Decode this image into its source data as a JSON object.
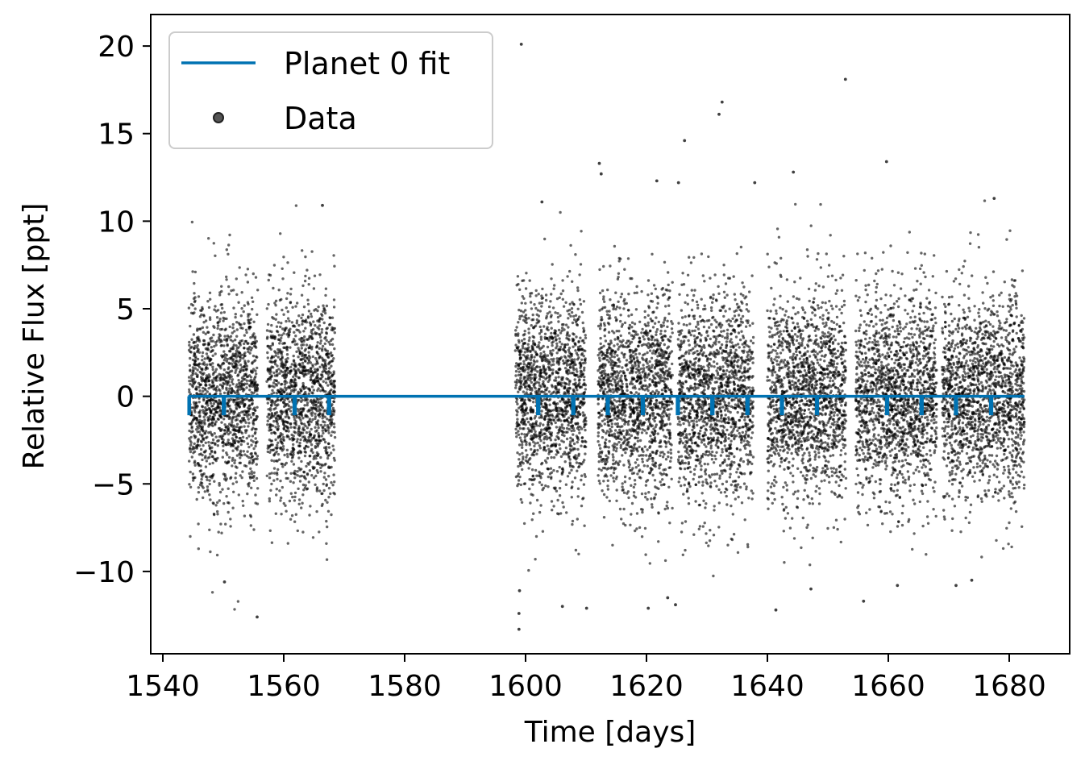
{
  "chart_data": {
    "type": "scatter",
    "xlabel": "Time [days]",
    "ylabel": "Relative Flux [ppt]",
    "xlim": [
      1538,
      1690
    ],
    "ylim": [
      -14.7,
      21.8
    ],
    "xticks": [
      1540,
      1560,
      1580,
      1600,
      1620,
      1640,
      1660,
      1680
    ],
    "yticks": [
      -10,
      -5,
      0,
      5,
      10,
      15,
      20
    ],
    "ytick_labels": [
      "−10",
      "−5",
      "0",
      "5",
      "10",
      "15",
      "20"
    ],
    "grid": false,
    "legend": {
      "placement": "top-left",
      "entries": [
        {
          "label": "Planet 0 fit",
          "marker": "line",
          "color": "#0072b2"
        },
        {
          "label": "Data",
          "marker": "point",
          "color": "#000000"
        }
      ]
    },
    "data_segments": [
      {
        "start": 1544.3,
        "end": 1555.7,
        "count": 1400
      },
      {
        "start": 1557.2,
        "end": 1568.5,
        "count": 1400
      },
      {
        "start": 1598.3,
        "end": 1610.0,
        "count": 1450
      },
      {
        "start": 1612.0,
        "end": 1624.3,
        "count": 1500
      },
      {
        "start": 1625.2,
        "end": 1637.7,
        "count": 1500
      },
      {
        "start": 1640.0,
        "end": 1653.0,
        "count": 1550
      },
      {
        "start": 1654.6,
        "end": 1668.0,
        "count": 1600
      },
      {
        "start": 1668.9,
        "end": 1682.5,
        "count": 1600
      }
    ],
    "scatter_noise_ppt": 2.9,
    "outliers": [
      {
        "x": 1599.3,
        "y": 20.1
      },
      {
        "x": 1652.9,
        "y": 18.1
      },
      {
        "x": 1632.5,
        "y": 16.8
      },
      {
        "x": 1632.0,
        "y": 16.1
      },
      {
        "x": 1626.3,
        "y": 14.6
      },
      {
        "x": 1659.7,
        "y": 13.4
      },
      {
        "x": 1612.2,
        "y": 13.3
      },
      {
        "x": 1612.5,
        "y": 12.7
      },
      {
        "x": 1644.3,
        "y": 12.8
      },
      {
        "x": 1621.7,
        "y": 12.3
      },
      {
        "x": 1625.3,
        "y": 12.2
      },
      {
        "x": 1637.9,
        "y": 12.2
      },
      {
        "x": 1566.4,
        "y": 10.9
      },
      {
        "x": 1602.7,
        "y": 11.1
      },
      {
        "x": 1677.5,
        "y": 11.3
      },
      {
        "x": 1598.9,
        "y": -13.3
      },
      {
        "x": 1598.9,
        "y": -12.4
      },
      {
        "x": 1610.1,
        "y": -12.1
      },
      {
        "x": 1620.3,
        "y": -12.1
      },
      {
        "x": 1624.8,
        "y": -11.9
      },
      {
        "x": 1641.4,
        "y": -12.2
      },
      {
        "x": 1623.5,
        "y": -11.5
      },
      {
        "x": 1655.9,
        "y": -11.7
      },
      {
        "x": 1555.6,
        "y": -12.6
      },
      {
        "x": 1550.2,
        "y": -10.6
      },
      {
        "x": 1606.1,
        "y": -12.0
      },
      {
        "x": 1647.2,
        "y": -11.0
      },
      {
        "x": 1661.5,
        "y": -10.8
      },
      {
        "x": 1671.2,
        "y": -10.8
      },
      {
        "x": 1673.8,
        "y": -10.5
      },
      {
        "x": 1599.0,
        "y": -11.1
      }
    ],
    "series": [
      {
        "name": "Planet 0 fit",
        "color": "#0072b2",
        "baseline": 0,
        "transit_depth": -1.0,
        "transit_duration_days": 0.25,
        "transit_times": [
          1544.3,
          1550.1,
          1561.8,
          1567.5,
          1602.1,
          1607.9,
          1613.6,
          1619.4,
          1625.2,
          1630.9,
          1636.7,
          1642.4,
          1648.2,
          1659.8,
          1665.5,
          1671.2,
          1677.0
        ]
      }
    ]
  }
}
